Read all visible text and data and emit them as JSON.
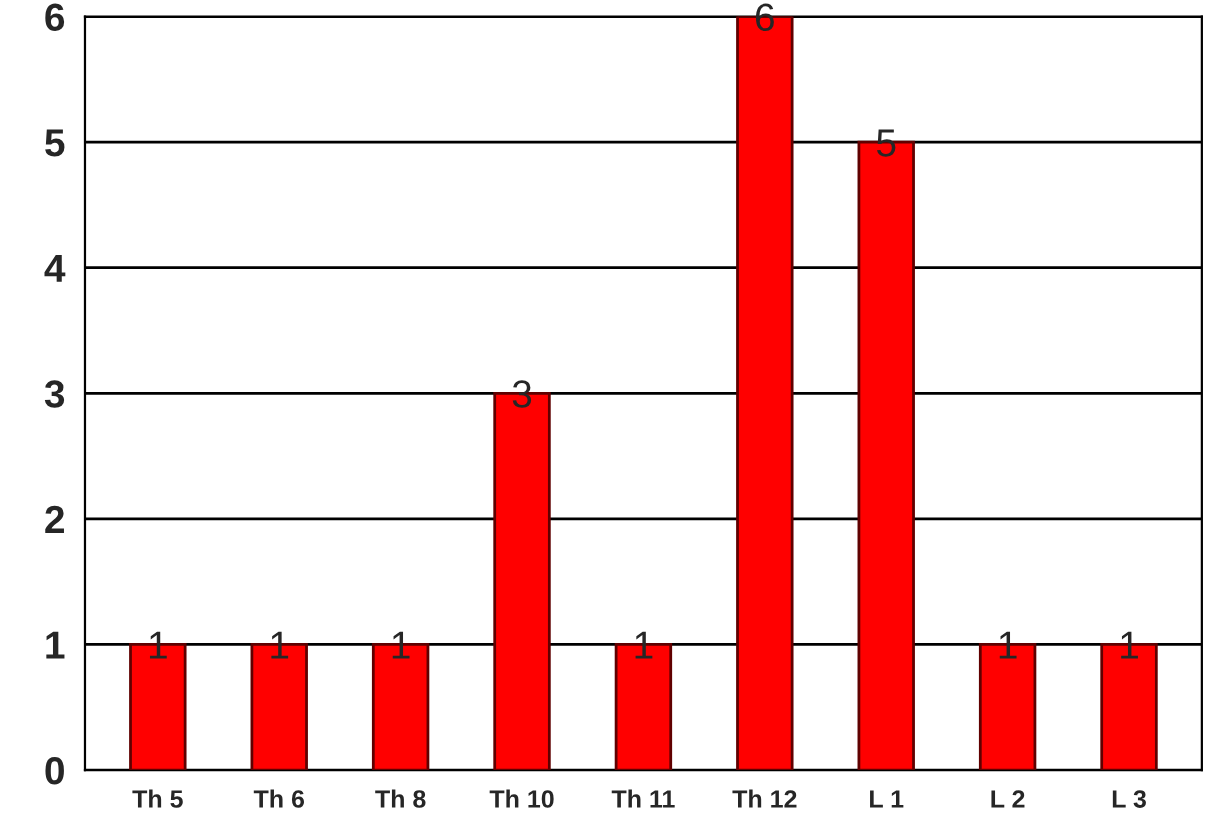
{
  "chart_data": {
    "type": "bar",
    "categories": [
      "Th 5",
      "Th 6",
      "Th 8",
      "Th 10",
      "Th 11",
      "Th 12",
      "L 1",
      "L 2",
      "L 3"
    ],
    "values": [
      1,
      1,
      1,
      3,
      1,
      6,
      5,
      1,
      1
    ],
    "color": "#ff0000",
    "ylim": [
      0,
      6
    ],
    "yticks": [
      0,
      1,
      2,
      3,
      4,
      5,
      6
    ],
    "grid": "y",
    "data_labels": true
  }
}
